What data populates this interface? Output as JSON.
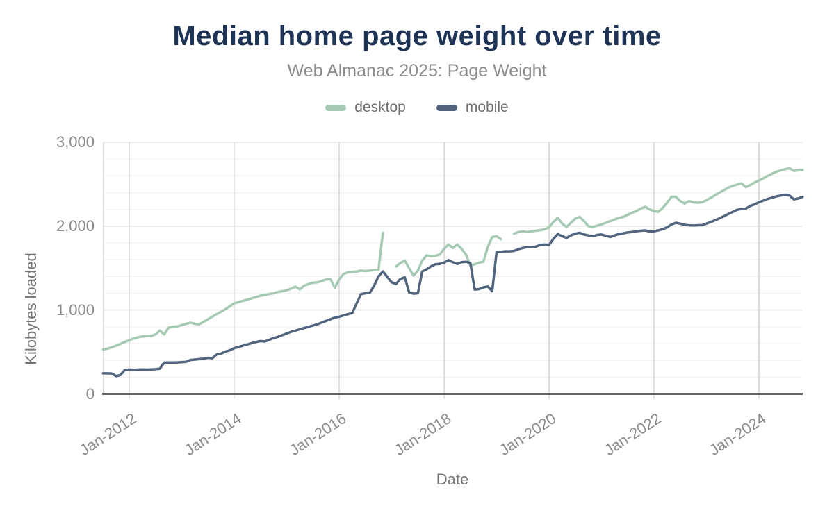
{
  "chart_data": {
    "type": "line",
    "title": "Median home page weight over time",
    "subtitle": "Web Almanac 2025: Page Weight",
    "xlabel": "Date",
    "ylabel": "Kilobytes loaded",
    "ylim": [
      0,
      3000
    ],
    "y_ticks": [
      {
        "value": 0,
        "label": "0"
      },
      {
        "value": 1000,
        "label": "1,000"
      },
      {
        "value": 2000,
        "label": "2,000"
      },
      {
        "value": 3000,
        "label": "3,000"
      }
    ],
    "y_minor_step": 200,
    "x_ticks": [
      {
        "month_offset": 0,
        "label": "Jan-2012"
      },
      {
        "month_offset": 24,
        "label": "Jan-2014"
      },
      {
        "month_offset": 48,
        "label": "Jan-2016"
      },
      {
        "month_offset": 72,
        "label": "Jan-2018"
      },
      {
        "month_offset": 96,
        "label": "Jan-2020"
      },
      {
        "month_offset": 120,
        "label": "Jan-2022"
      },
      {
        "month_offset": 144,
        "label": "Jan-2024"
      }
    ],
    "x_start_month_offset": -6,
    "x_start_label": "Jul-2011",
    "x_end_label": "Nov-2024",
    "grid": true,
    "legend_position": "top",
    "colors": {
      "desktop": "#a5c9b3",
      "mobile": "#50647e",
      "title": "#1e3456",
      "subtitle": "#8d8d8d",
      "tick_labels": "#8a8a8a",
      "axis_titles": "#757575",
      "legend_text": "#6f6f6f",
      "grid_vertical": "#d4d4d4",
      "grid_major": "#e7e7e7",
      "grid_minor": "#f3f3f3",
      "axis_line": "#333333"
    },
    "series": [
      {
        "name": "desktop",
        "color": "#a5c9b3",
        "values": [
          530,
          540,
          555,
          575,
          595,
          620,
          640,
          660,
          675,
          685,
          690,
          690,
          710,
          755,
          710,
          790,
          800,
          805,
          820,
          835,
          850,
          835,
          830,
          860,
          890,
          920,
          950,
          980,
          1010,
          1045,
          1080,
          1095,
          1110,
          1125,
          1140,
          1155,
          1170,
          1180,
          1190,
          1200,
          1215,
          1225,
          1235,
          1255,
          1280,
          1245,
          1290,
          1310,
          1325,
          1330,
          1345,
          1365,
          1370,
          1265,
          1365,
          1430,
          1450,
          1455,
          1460,
          1470,
          1465,
          1470,
          1478,
          1480,
          1920,
          null,
          null,
          1520,
          1560,
          1590,
          1500,
          1410,
          1470,
          1590,
          1650,
          1640,
          1645,
          1660,
          1730,
          1780,
          1740,
          1780,
          1730,
          1660,
          1530,
          1545,
          1565,
          1575,
          1750,
          1870,
          1880,
          1845,
          null,
          null,
          1910,
          1930,
          1938,
          1930,
          1940,
          1945,
          1952,
          1963,
          1985,
          2050,
          2100,
          2030,
          1990,
          2040,
          2090,
          2110,
          2060,
          2000,
          1990,
          2005,
          2020,
          2040,
          2060,
          2080,
          2100,
          2110,
          2135,
          2160,
          2180,
          2210,
          2230,
          2200,
          2180,
          2170,
          2220,
          2280,
          2350,
          2350,
          2300,
          2270,
          2300,
          2285,
          2280,
          2285,
          2310,
          2340,
          2370,
          2400,
          2430,
          2460,
          2480,
          2495,
          2510,
          2465,
          2490,
          2520,
          2545,
          2570,
          2600,
          2625,
          2650,
          2665,
          2680,
          2690,
          2660,
          2665,
          2670
        ]
      },
      {
        "name": "mobile",
        "color": "#50647e",
        "values": [
          245,
          245,
          243,
          212,
          225,
          288,
          290,
          288,
          290,
          292,
          290,
          292,
          295,
          300,
          373,
          374,
          375,
          376,
          378,
          382,
          405,
          410,
          415,
          420,
          430,
          425,
          470,
          480,
          505,
          520,
          545,
          560,
          575,
          590,
          605,
          620,
          630,
          625,
          645,
          665,
          680,
          700,
          720,
          740,
          755,
          770,
          785,
          800,
          815,
          830,
          850,
          870,
          890,
          910,
          920,
          935,
          950,
          965,
          1080,
          1190,
          1200,
          1205,
          1290,
          1400,
          1460,
          1395,
          1330,
          1310,
          1370,
          1390,
          1210,
          1195,
          1200,
          1460,
          1485,
          1520,
          1545,
          1550,
          1565,
          1595,
          1570,
          1550,
          1570,
          1575,
          1560,
          1245,
          1250,
          1270,
          1280,
          1225,
          1690,
          1695,
          1700,
          1700,
          1705,
          1725,
          1740,
          1750,
          1750,
          1755,
          1775,
          1780,
          1775,
          1850,
          1905,
          1880,
          1860,
          1890,
          1910,
          1920,
          1900,
          1890,
          1880,
          1895,
          1900,
          1885,
          1870,
          1890,
          1905,
          1915,
          1925,
          1930,
          1940,
          1945,
          1950,
          1935,
          1940,
          1950,
          1965,
          1985,
          2020,
          2040,
          2030,
          2015,
          2010,
          2008,
          2010,
          2012,
          2030,
          2050,
          2070,
          2095,
          2120,
          2145,
          2170,
          2195,
          2205,
          2210,
          2240,
          2260,
          2285,
          2305,
          2325,
          2340,
          2355,
          2365,
          2375,
          2365,
          2320,
          2330,
          2350
        ]
      }
    ]
  }
}
